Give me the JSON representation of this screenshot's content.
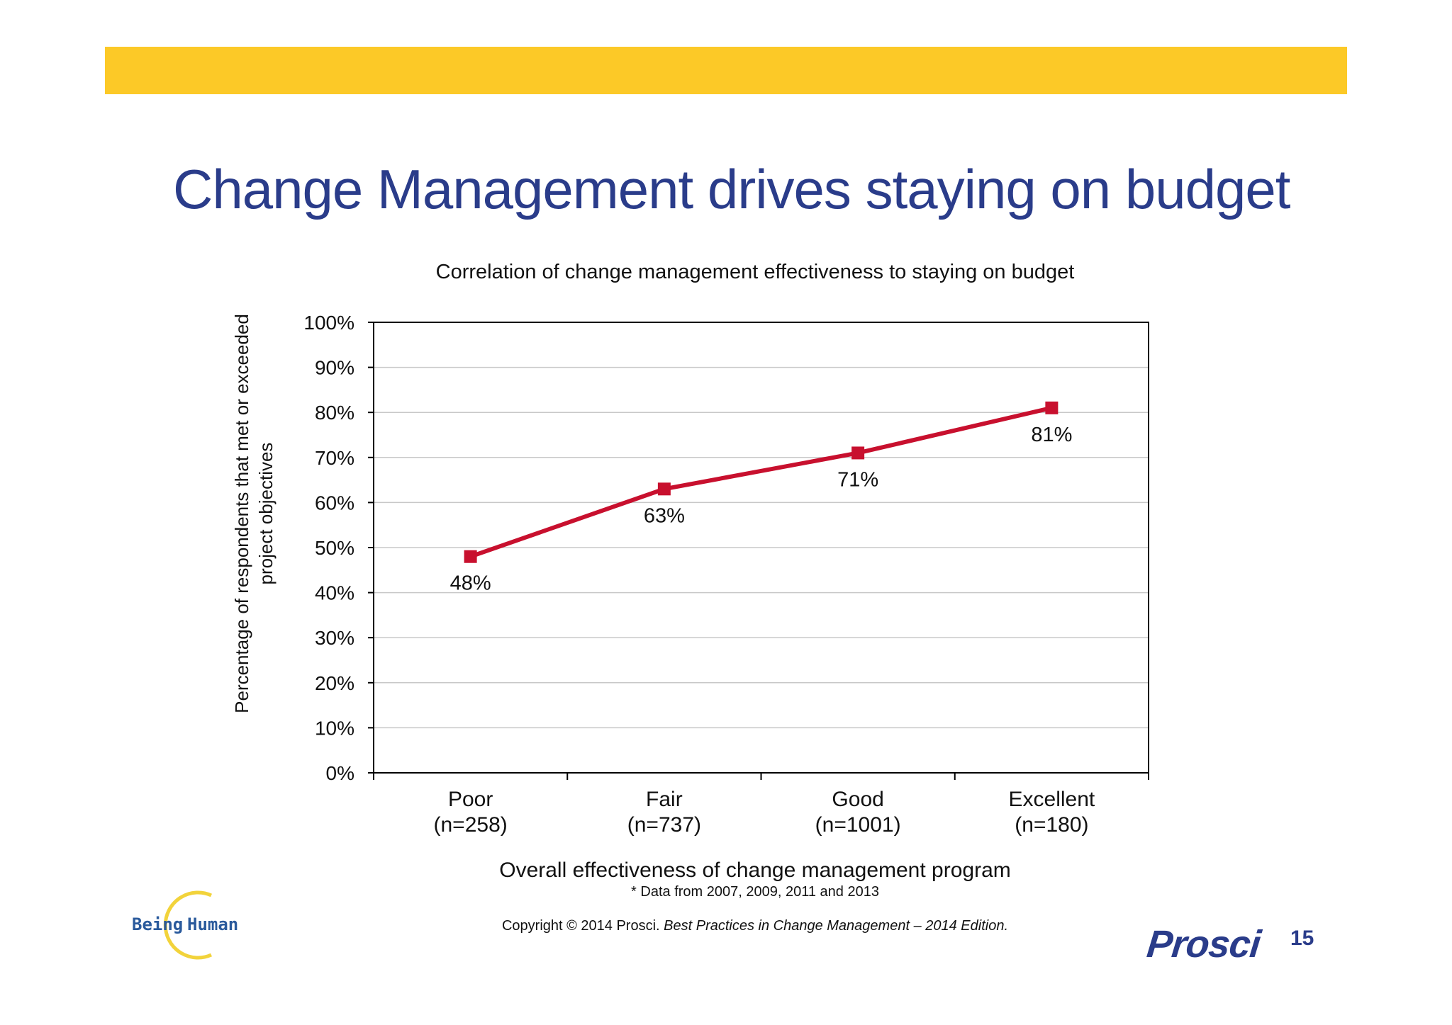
{
  "slide": {
    "title": "Change Management drives staying on budget",
    "page_number": "15",
    "footnote": "* Data from 2007, 2009, 2011 and 2013",
    "copyright_prefix": "Copyright © 2014 Prosci. ",
    "copyright_italic": "Best Practices in Change Management – 2014 Edition.",
    "banner_color": "#fcc927",
    "title_color": "#2a3c8a"
  },
  "logos": {
    "being_human_left": "Being",
    "being_human_right": "Human",
    "prosci": "Prosci"
  },
  "chart_data": {
    "type": "line",
    "title": "Correlation of change management effectiveness to staying on budget",
    "xlabel": "Overall effectiveness of change management program",
    "ylabel_line1": "Percentage of respondents that met or exceeded",
    "ylabel_line2": "project objectives",
    "categories": [
      [
        "Poor",
        "(n=258)"
      ],
      [
        "Fair",
        "(n=737)"
      ],
      [
        "Good",
        "(n=1001)"
      ],
      [
        "Excellent",
        "(n=180)"
      ]
    ],
    "series": [
      {
        "values": [
          48,
          63,
          71,
          81
        ],
        "labels": [
          "48%",
          "63%",
          "71%",
          "81%"
        ],
        "color": "#c8102e"
      }
    ],
    "ylim": [
      0,
      100
    ],
    "yticks": [
      "0%",
      "10%",
      "20%",
      "30%",
      "40%",
      "50%",
      "60%",
      "70%",
      "80%",
      "90%",
      "100%"
    ],
    "grid": true,
    "legend": "none"
  }
}
